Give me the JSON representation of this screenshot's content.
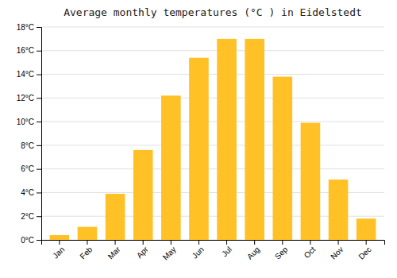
{
  "chart_data": {
    "type": "bar",
    "title": "Average monthly temperatures (°C ) in Eidelstedt",
    "categories": [
      "Jan",
      "Feb",
      "Mar",
      "Apr",
      "May",
      "Jun",
      "Jul",
      "Aug",
      "Sep",
      "Oct",
      "Nov",
      "Dec"
    ],
    "values": [
      0.4,
      1.1,
      3.9,
      7.6,
      12.2,
      15.4,
      17.0,
      17.0,
      13.8,
      9.9,
      5.1,
      1.8
    ],
    "color": "#FFC125",
    "ylim": [
      0,
      18
    ],
    "yticks": [
      {
        "value": 0,
        "label": "0°C"
      },
      {
        "value": 2,
        "label": "2°C"
      },
      {
        "value": 4,
        "label": "4°C"
      },
      {
        "value": 6,
        "label": "6°C"
      },
      {
        "value": 8,
        "label": "8°C"
      },
      {
        "value": 10,
        "label": "10°C"
      },
      {
        "value": 12,
        "label": "12°C"
      },
      {
        "value": 14,
        "label": "14°C"
      },
      {
        "value": 16,
        "label": "16°C"
      },
      {
        "value": 18,
        "label": "18°C"
      }
    ],
    "grid": true
  }
}
